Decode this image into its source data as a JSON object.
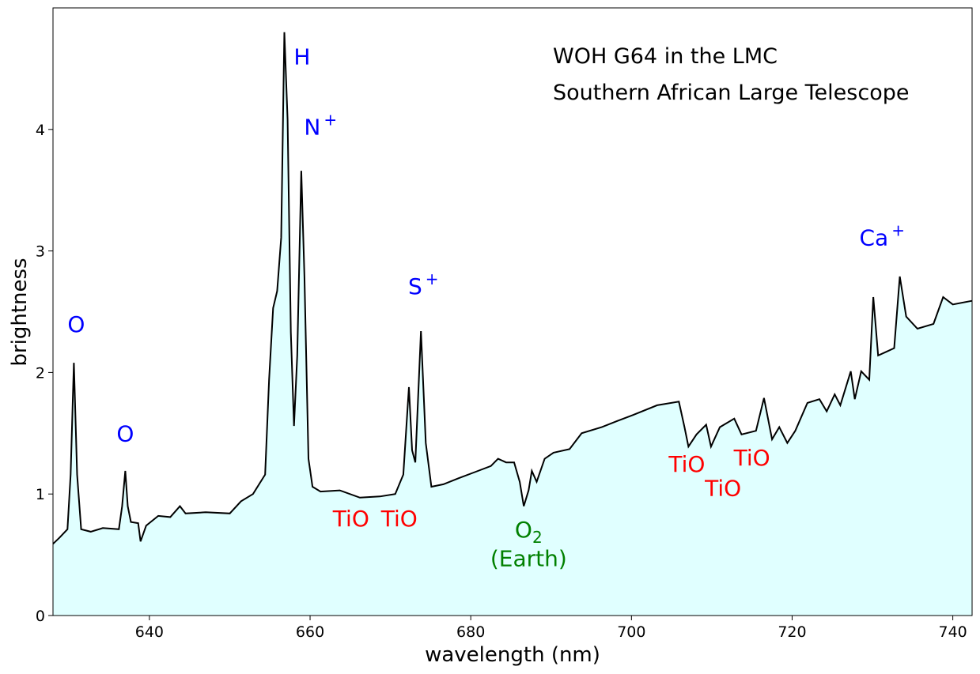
{
  "chart_data": {
    "type": "area",
    "xlabel": "wavelength (nm)",
    "ylabel": "brightness",
    "xlim": [
      628,
      742.4
    ],
    "ylim": [
      0,
      5
    ],
    "xticks": [
      640,
      660,
      680,
      700,
      720,
      740
    ],
    "yticks": [
      0,
      1,
      2,
      3,
      4
    ],
    "grid": false,
    "colors": {
      "line": "#000000",
      "fill": "#e0ffff",
      "emission": "#0000ff",
      "absorption": "#ff0000",
      "telluric": "#008000"
    },
    "title_lines": [
      "WOH G64 in the LMC",
      "Southern African Large Telescope"
    ],
    "series": [
      {
        "x": [
          628.0,
          628.8,
          629.8,
          630.2,
          630.6,
          631.0,
          631.5,
          632.7,
          634.2,
          636.2,
          636.6,
          637.0,
          637.3,
          637.7,
          638.6,
          638.9,
          639.6,
          641.1,
          642.6,
          643.8,
          644.5,
          647.0,
          650.0,
          651.4,
          652.9,
          654.4,
          654.9,
          655.4,
          655.9,
          656.4,
          656.8,
          657.2,
          657.6,
          658.0,
          658.4,
          658.9,
          659.3,
          659.8,
          660.3,
          661.3,
          663.7,
          666.2,
          668.7,
          670.6,
          671.6,
          672.3,
          672.7,
          673.1,
          673.8,
          674.4,
          675.1,
          676.6,
          678.5,
          680.5,
          682.5,
          683.4,
          684.4,
          685.4,
          686.1,
          686.6,
          687.2,
          687.6,
          688.2,
          689.2,
          690.3,
          692.3,
          693.8,
          696.3,
          698.2,
          700.2,
          703.2,
          705.9,
          706.6,
          707.1,
          708.1,
          709.3,
          709.9,
          711.0,
          712.8,
          713.7,
          715.5,
          716.5,
          717.5,
          718.4,
          719.4,
          720.4,
          721.9,
          723.4,
          724.3,
          725.3,
          726.0,
          727.3,
          727.8,
          728.6,
          729.6,
          730.1,
          730.7,
          731.7,
          732.7,
          733.4,
          734.2,
          735.6,
          737.6,
          738.8,
          740.0,
          742.4
        ],
        "y": [
          0.59,
          0.64,
          0.71,
          1.16,
          2.08,
          1.16,
          0.71,
          0.69,
          0.72,
          0.71,
          0.9,
          1.19,
          0.9,
          0.77,
          0.76,
          0.61,
          0.74,
          0.82,
          0.81,
          0.9,
          0.84,
          0.85,
          0.84,
          0.94,
          1.0,
          1.16,
          1.94,
          2.53,
          2.67,
          3.11,
          4.8,
          4.08,
          2.33,
          1.56,
          2.14,
          3.66,
          2.79,
          1.29,
          1.06,
          1.02,
          1.03,
          0.97,
          0.98,
          1.0,
          1.16,
          1.88,
          1.36,
          1.26,
          2.34,
          1.42,
          1.06,
          1.08,
          1.13,
          1.18,
          1.23,
          1.29,
          1.26,
          1.26,
          1.1,
          0.9,
          1.03,
          1.19,
          1.1,
          1.29,
          1.34,
          1.37,
          1.5,
          1.55,
          1.6,
          1.65,
          1.73,
          1.76,
          1.55,
          1.39,
          1.49,
          1.57,
          1.39,
          1.55,
          1.62,
          1.49,
          1.52,
          1.79,
          1.45,
          1.55,
          1.42,
          1.52,
          1.75,
          1.78,
          1.68,
          1.82,
          1.73,
          2.01,
          1.78,
          2.01,
          1.94,
          2.62,
          2.14,
          2.17,
          2.2,
          2.79,
          2.46,
          2.36,
          2.4,
          2.62,
          2.56,
          2.59
        ]
      }
    ],
    "annotations": [
      {
        "text": "O",
        "sup": "",
        "sub": "",
        "x": 630.9,
        "y": 2.4,
        "kind": "emission"
      },
      {
        "text": "O",
        "sup": "",
        "sub": "",
        "x": 637.0,
        "y": 1.5,
        "kind": "emission"
      },
      {
        "text": "H",
        "sup": "",
        "sub": "",
        "x": 659.0,
        "y": 4.6,
        "kind": "emission"
      },
      {
        "text": "N",
        "sup": "+",
        "sub": "",
        "x": 661.3,
        "y": 4.02,
        "kind": "emission"
      },
      {
        "text": "S",
        "sup": "+",
        "sub": "",
        "x": 674.1,
        "y": 2.71,
        "kind": "emission"
      },
      {
        "text": "Ca",
        "sup": "+",
        "sub": "",
        "x": 731.2,
        "y": 3.11,
        "kind": "emission"
      },
      {
        "text": "TiO",
        "sup": "",
        "sub": "",
        "x": 665.1,
        "y": 0.8,
        "kind": "absorption"
      },
      {
        "text": "TiO",
        "sup": "",
        "sub": "",
        "x": 671.1,
        "y": 0.8,
        "kind": "absorption"
      },
      {
        "text": "O",
        "sup": "",
        "sub": "2",
        "x": 687.2,
        "y": 0.71,
        "kind": "telluric"
      },
      {
        "text": "(Earth)",
        "sup": "",
        "sub": "",
        "x": 687.2,
        "y": 0.47,
        "kind": "telluric"
      },
      {
        "text": "TiO",
        "sup": "",
        "sub": "",
        "x": 706.9,
        "y": 1.25,
        "kind": "absorption"
      },
      {
        "text": "TiO",
        "sup": "",
        "sub": "",
        "x": 711.4,
        "y": 1.05,
        "kind": "absorption"
      },
      {
        "text": "TiO",
        "sup": "",
        "sub": "",
        "x": 715.0,
        "y": 1.3,
        "kind": "absorption"
      }
    ]
  }
}
